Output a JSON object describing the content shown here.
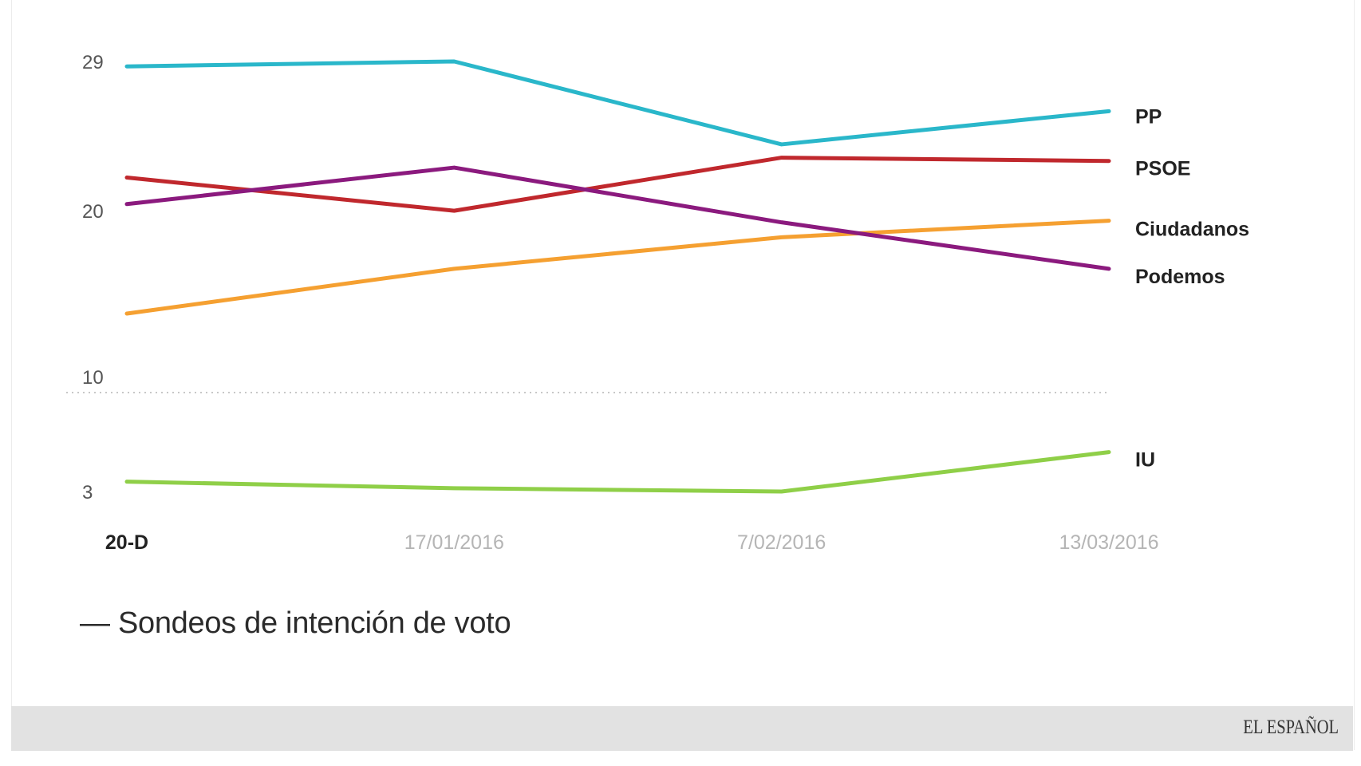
{
  "chart_data": {
    "type": "line",
    "title": "Sondeos de intención de voto",
    "caption": "— Sondeos de intención de voto",
    "categories": [
      "20-D",
      "17/01/2016",
      "7/02/2016",
      "13/03/2016"
    ],
    "y_ticks": [
      29,
      20,
      10,
      3
    ],
    "axis_break_between": [
      3,
      10
    ],
    "grid": false,
    "series": [
      {
        "name": "PP",
        "color": "#2ab7ca",
        "values": [
          28.7,
          29.0,
          24.0,
          26.0
        ]
      },
      {
        "name": "PSOE",
        "color": "#c0282d",
        "values": [
          22.0,
          20.0,
          23.2,
          23.0
        ]
      },
      {
        "name": "Ciudadanos",
        "color": "#f5a031",
        "values": [
          13.8,
          16.5,
          18.4,
          19.4
        ]
      },
      {
        "name": "Podemos",
        "color": "#8b1a7e",
        "values": [
          20.4,
          22.6,
          19.3,
          16.5
        ]
      },
      {
        "name": "IU",
        "color": "#8fcf48",
        "values": [
          3.6,
          3.2,
          3.0,
          5.4
        ]
      }
    ]
  },
  "footer": {
    "logo": "EL ESPAÑOL"
  }
}
